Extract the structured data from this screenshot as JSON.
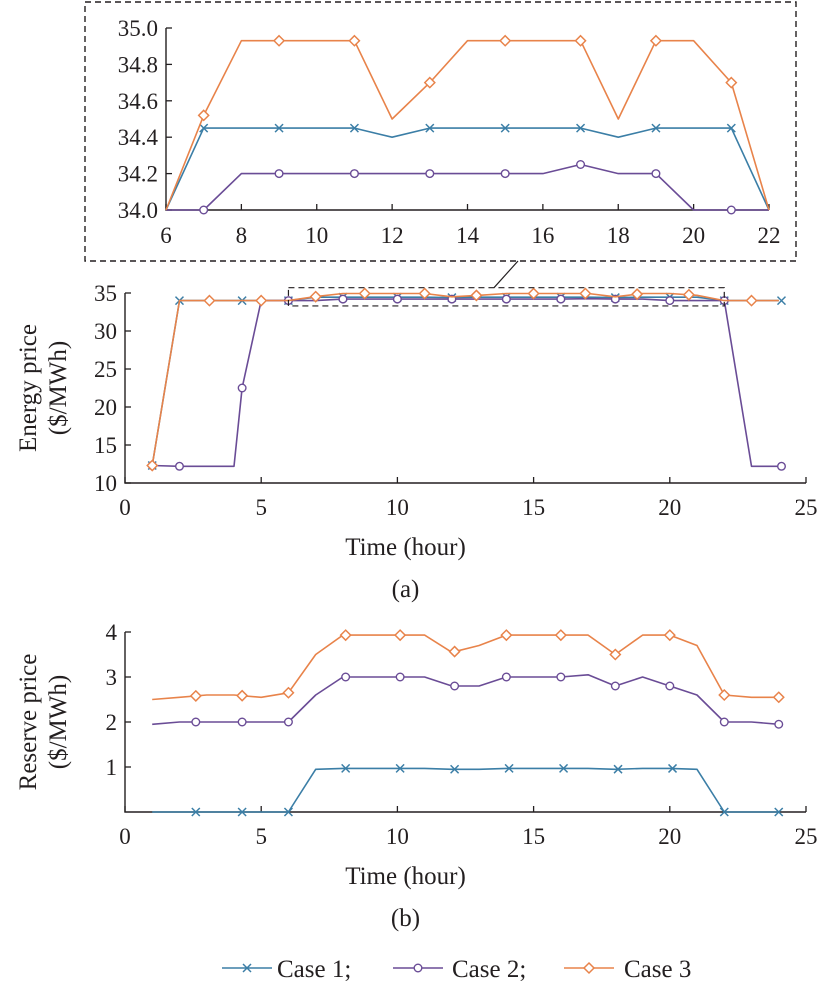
{
  "colors": {
    "case1": "#3b7ea6",
    "case2": "#6a4c96",
    "case3": "#e8834a",
    "axis": "#231f20"
  },
  "legend": [
    {
      "label": "Case 1;",
      "marker": "x",
      "color": "#3b7ea6"
    },
    {
      "label": "Case 2;",
      "marker": "circle",
      "color": "#6a4c96"
    },
    {
      "label": "Case 3",
      "marker": "diamond",
      "color": "#e8834a"
    }
  ],
  "chart_data": [
    {
      "id": "inset",
      "type": "line",
      "title": "",
      "xlabel": "",
      "ylabel": "",
      "xlim": [
        6,
        22
      ],
      "ylim": [
        34.0,
        35.0
      ],
      "xticks": [
        6,
        8,
        10,
        12,
        14,
        16,
        18,
        20,
        22
      ],
      "yticks": [
        34.0,
        34.2,
        34.4,
        34.6,
        34.8,
        35.0
      ],
      "ytick_labels": [
        "34.0",
        "34.2",
        "34.4",
        "34.6",
        "34.8",
        "35.0"
      ],
      "series": [
        {
          "key": "case1",
          "x": [
            6,
            7,
            8,
            9,
            10,
            11,
            12,
            13,
            14,
            15,
            16,
            17,
            18,
            19,
            20,
            21,
            22
          ],
          "y": [
            34.0,
            34.45,
            34.45,
            34.45,
            34.45,
            34.45,
            34.4,
            34.45,
            34.45,
            34.45,
            34.45,
            34.45,
            34.4,
            34.45,
            34.45,
            34.45,
            34.0
          ],
          "marker_x": [
            7,
            9,
            11,
            13,
            15,
            17,
            19,
            21
          ]
        },
        {
          "key": "case2",
          "x": [
            6,
            7,
            8,
            9,
            10,
            11,
            12,
            13,
            14,
            15,
            16,
            17,
            18,
            19,
            20,
            21,
            22
          ],
          "y": [
            34.0,
            34.0,
            34.2,
            34.2,
            34.2,
            34.2,
            34.2,
            34.2,
            34.2,
            34.2,
            34.2,
            34.25,
            34.2,
            34.2,
            34.0,
            34.0,
            34.0
          ],
          "marker_x": [
            7,
            9,
            11,
            13,
            15,
            17,
            19,
            21
          ]
        },
        {
          "key": "case3",
          "x": [
            6,
            7,
            8,
            9,
            10,
            11,
            12,
            13,
            14,
            15,
            16,
            17,
            18,
            19,
            20,
            21,
            22
          ],
          "y": [
            34.0,
            34.52,
            34.93,
            34.93,
            34.93,
            34.93,
            34.5,
            34.7,
            34.93,
            34.93,
            34.93,
            34.93,
            34.5,
            34.93,
            34.93,
            34.7,
            34.0
          ],
          "marker_x": [
            7,
            9,
            11,
            13,
            15,
            17,
            19,
            21
          ]
        }
      ]
    },
    {
      "id": "energy",
      "type": "line",
      "title": "",
      "caption": "(a)",
      "xlabel": "Time (hour)",
      "ylabel_lines": [
        "Energy price",
        "($/MWh)"
      ],
      "xlim": [
        0,
        25
      ],
      "ylim": [
        10,
        35
      ],
      "xticks": [
        0,
        5,
        10,
        15,
        20,
        25
      ],
      "yticks": [
        10,
        15,
        20,
        25,
        30,
        35
      ],
      "zoom_box": {
        "x": [
          6,
          22
        ],
        "y": [
          33.3,
          35.7
        ]
      },
      "series": [
        {
          "key": "case1",
          "x": [
            1,
            2,
            3,
            4,
            5,
            6,
            7,
            8,
            9,
            10,
            11,
            12,
            13,
            14,
            15,
            16,
            17,
            18,
            19,
            20,
            21,
            22,
            23,
            24
          ],
          "y": [
            12.3,
            34.0,
            34.0,
            34.0,
            34.0,
            34.0,
            34.45,
            34.45,
            34.45,
            34.45,
            34.45,
            34.4,
            34.45,
            34.45,
            34.45,
            34.45,
            34.45,
            34.4,
            34.45,
            34.45,
            34.45,
            34.0,
            34.0,
            34.0
          ],
          "marker_x": [
            1,
            2,
            4.3,
            6,
            8,
            10,
            12,
            14,
            16,
            18,
            20,
            22,
            24.1
          ]
        },
        {
          "key": "case2",
          "x": [
            1,
            2,
            3,
            4,
            4.3,
            5,
            6,
            7,
            8,
            9,
            10,
            11,
            12,
            13,
            14,
            15,
            16,
            17,
            18,
            19,
            20,
            21,
            22,
            23,
            24
          ],
          "y": [
            12.3,
            12.2,
            12.2,
            12.2,
            22.5,
            34.0,
            34.0,
            34.0,
            34.2,
            34.2,
            34.2,
            34.2,
            34.2,
            34.2,
            34.2,
            34.2,
            34.2,
            34.25,
            34.2,
            34.2,
            34.0,
            34.0,
            34.0,
            12.2,
            12.2
          ],
          "marker_x": [
            1,
            2,
            4.3,
            6,
            8,
            10,
            12,
            14,
            16,
            18,
            20,
            22,
            24.1
          ]
        },
        {
          "key": "case3",
          "x": [
            1,
            2,
            3,
            4,
            5,
            6,
            7,
            8,
            9,
            10,
            11,
            12,
            13,
            14,
            15,
            16,
            17,
            18,
            19,
            20,
            21,
            22,
            23,
            24
          ],
          "y": [
            12.3,
            34.0,
            34.0,
            34.0,
            34.0,
            34.0,
            34.52,
            34.93,
            34.93,
            34.93,
            34.93,
            34.5,
            34.7,
            34.93,
            34.93,
            34.93,
            34.93,
            34.5,
            34.93,
            34.93,
            34.7,
            34.0,
            34.0,
            34.0
          ],
          "marker_x": [
            1,
            3.1,
            5,
            7,
            8.8,
            11,
            12.9,
            15,
            16.9,
            18.8,
            20.7,
            23
          ]
        }
      ]
    },
    {
      "id": "reserve",
      "type": "line",
      "title": "",
      "caption": "(b)",
      "xlabel": "Time (hour)",
      "ylabel_lines": [
        "Reserve price",
        "($/MWh)"
      ],
      "xlim": [
        0,
        25
      ],
      "ylim": [
        0,
        4
      ],
      "xticks": [
        0,
        5,
        10,
        15,
        20,
        25
      ],
      "yticks": [
        1,
        2,
        3,
        4
      ],
      "series": [
        {
          "key": "case1",
          "x": [
            1,
            2,
            3,
            4,
            5,
            6,
            7,
            8,
            9,
            10,
            11,
            12,
            13,
            14,
            15,
            16,
            17,
            18,
            19,
            20,
            21,
            22,
            23,
            24
          ],
          "y": [
            0,
            0,
            0,
            0,
            0,
            0,
            0.95,
            0.97,
            0.97,
            0.97,
            0.97,
            0.95,
            0.95,
            0.97,
            0.97,
            0.97,
            0.97,
            0.95,
            0.97,
            0.97,
            0.95,
            0,
            0,
            0
          ],
          "marker_x": [
            2.6,
            4.3,
            6,
            8.1,
            10.1,
            12.1,
            14.1,
            16.1,
            18.1,
            20.1,
            22,
            24
          ]
        },
        {
          "key": "case2",
          "x": [
            1,
            2,
            3,
            4,
            5,
            6,
            7,
            8,
            9,
            10,
            11,
            12,
            13,
            14,
            15,
            16,
            17,
            18,
            19,
            20,
            21,
            22,
            23,
            24
          ],
          "y": [
            1.95,
            2.0,
            2.0,
            2.0,
            2.0,
            2.0,
            2.6,
            3.0,
            3.0,
            3.0,
            3.0,
            2.8,
            2.8,
            3.0,
            3.0,
            3.0,
            3.05,
            2.8,
            3.0,
            2.8,
            2.6,
            2.0,
            2.0,
            1.95
          ],
          "marker_x": [
            2.6,
            4.3,
            6,
            8.1,
            10.1,
            12.1,
            14,
            16,
            18,
            20,
            22,
            24
          ]
        },
        {
          "key": "case3",
          "x": [
            1,
            2,
            3,
            4,
            5,
            6,
            7,
            8,
            9,
            10,
            11,
            12,
            13,
            14,
            15,
            16,
            17,
            18,
            19,
            20,
            21,
            22,
            23,
            24
          ],
          "y": [
            2.5,
            2.55,
            2.6,
            2.6,
            2.55,
            2.65,
            3.5,
            3.93,
            3.93,
            3.93,
            3.93,
            3.55,
            3.7,
            3.93,
            3.93,
            3.93,
            3.93,
            3.5,
            3.93,
            3.93,
            3.7,
            2.6,
            2.55,
            2.55
          ],
          "marker_x": [
            2.6,
            4.3,
            6,
            8.1,
            10.1,
            12.1,
            14,
            16,
            18,
            20,
            22,
            24
          ]
        }
      ]
    }
  ]
}
